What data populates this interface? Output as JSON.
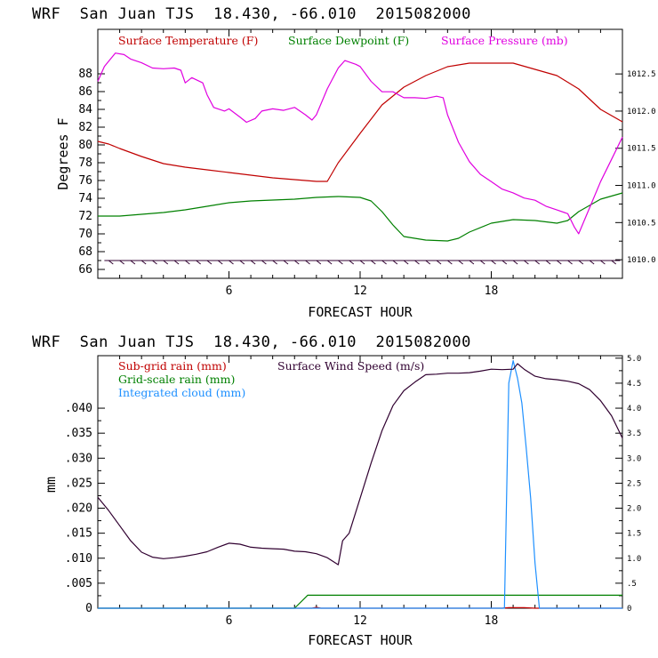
{
  "chart_data": [
    {
      "type": "line",
      "title": "WRF  San Juan TJS  18.430, -66.010  2015082000",
      "xlabel": "FORECAST HOUR",
      "ylabel": "Degrees F",
      "xlim": [
        0,
        24
      ],
      "x_ticks": [
        6,
        12,
        18
      ],
      "ylim": [
        65,
        93
      ],
      "y_ticks": [
        66,
        68,
        70,
        72,
        74,
        76,
        78,
        80,
        82,
        84,
        86,
        88
      ],
      "y2lim": [
        1009.75,
        1013.1
      ],
      "y2_ticks": [
        1010.0,
        1010.5,
        1011.0,
        1011.5,
        1012.0,
        1012.5
      ],
      "y2_tick_labels": [
        "1010.0",
        "1010.5",
        "1011.0",
        "1011.5",
        "1012.0",
        "1012.5"
      ],
      "legend_placement": "top",
      "series": [
        {
          "name": "Surface Temperature (F)",
          "color": "#c00000",
          "axis": "left",
          "x": [
            0,
            0.5,
            1,
            2,
            3,
            4,
            5,
            6,
            7,
            8,
            9,
            10,
            10.5,
            11,
            12,
            13,
            14,
            15,
            16,
            17,
            18,
            19,
            20,
            21,
            22,
            23,
            24
          ],
          "y": [
            80.4,
            80.1,
            79.6,
            78.7,
            77.9,
            77.5,
            77.2,
            76.9,
            76.6,
            76.3,
            76.1,
            75.9,
            75.9,
            78.0,
            81.3,
            84.5,
            86.5,
            87.8,
            88.8,
            89.2,
            89.2,
            89.2,
            88.5,
            87.8,
            86.3,
            84.0,
            82.6
          ]
        },
        {
          "name": "Surface Dewpoint (F)",
          "color": "#008000",
          "axis": "left",
          "x": [
            0,
            1,
            2,
            3,
            4,
            5,
            6,
            7,
            8,
            9,
            10,
            11,
            12,
            12.5,
            13,
            13.5,
            14,
            15,
            16,
            16.5,
            17,
            18,
            19,
            20,
            21,
            21.5,
            22,
            23,
            24
          ],
          "y": [
            72.0,
            72.0,
            72.2,
            72.4,
            72.7,
            73.1,
            73.5,
            73.7,
            73.8,
            73.9,
            74.1,
            74.2,
            74.1,
            73.7,
            72.5,
            71.0,
            69.7,
            69.3,
            69.2,
            69.5,
            70.2,
            71.2,
            71.6,
            71.5,
            71.2,
            71.5,
            72.5,
            73.9,
            74.6
          ]
        },
        {
          "name": "Surface Pressure (mb)",
          "color": "#e000e0",
          "axis": "right",
          "x": [
            0,
            0.3,
            0.8,
            1.2,
            1.5,
            2,
            2.5,
            3,
            3.5,
            3.8,
            4,
            4.3,
            4.8,
            5,
            5.3,
            5.8,
            6,
            6.5,
            6.8,
            7.2,
            7.5,
            8,
            8.5,
            9,
            9.5,
            9.8,
            10,
            10.5,
            11,
            11.3,
            11.8,
            12,
            12.5,
            13,
            13.5,
            14,
            14.5,
            15,
            15.5,
            15.8,
            16,
            16.5,
            17,
            17.5,
            18,
            18.5,
            19,
            19.5,
            20,
            20.5,
            21,
            21.5,
            21.8,
            22,
            22.5,
            23,
            23.5,
            24
          ],
          "y": [
            1012.4,
            1012.6,
            1012.78,
            1012.76,
            1012.7,
            1012.65,
            1012.58,
            1012.57,
            1012.58,
            1012.55,
            1012.38,
            1012.45,
            1012.38,
            1012.22,
            1012.05,
            1012.0,
            1012.03,
            1011.92,
            1011.85,
            1011.9,
            1012.0,
            1012.03,
            1012.01,
            1012.05,
            1011.95,
            1011.88,
            1011.95,
            1012.3,
            1012.58,
            1012.68,
            1012.63,
            1012.6,
            1012.4,
            1012.26,
            1012.26,
            1012.18,
            1012.18,
            1012.17,
            1012.2,
            1012.18,
            1011.95,
            1011.58,
            1011.32,
            1011.15,
            1011.05,
            1010.95,
            1010.9,
            1010.83,
            1010.8,
            1010.72,
            1010.67,
            1010.62,
            1010.44,
            1010.35,
            1010.7,
            1011.05,
            1011.35,
            1011.65
          ]
        }
      ],
      "wind_barbs": {
        "series_color": "#300030",
        "note_axis_level": 67
      }
    },
    {
      "type": "line",
      "title": "WRF  San Juan TJS  18.430, -66.010  2015082000",
      "xlabel": "FORECAST HOUR",
      "ylabel": "mm",
      "xlim": [
        0,
        24
      ],
      "x_ticks": [
        6,
        12,
        18
      ],
      "ylim": [
        0,
        0.0505
      ],
      "y_ticks": [
        0,
        0.005,
        0.01,
        0.015,
        0.02,
        0.025,
        0.03,
        0.035,
        0.04
      ],
      "y_tick_labels": [
        "0",
        ".005",
        ".010",
        ".015",
        ".020",
        ".025",
        ".030",
        ".035",
        ".040"
      ],
      "y2lim": [
        0,
        5.05
      ],
      "y2_ticks": [
        0,
        0.5,
        1.0,
        1.5,
        2.0,
        2.5,
        3.0,
        3.5,
        4.0,
        4.5,
        5.0
      ],
      "y2_tick_labels": [
        "0",
        ".5",
        "1.0",
        "1.5",
        "2.0",
        "2.5",
        "3.0",
        "3.5",
        "4.0",
        "4.5",
        "5.0"
      ],
      "legend_placement": "top-left",
      "series": [
        {
          "name": "Sub-grid rain (mm)",
          "color": "#c00000",
          "axis": "left",
          "x": [
            0,
            9.8,
            10,
            10.2,
            18.5,
            18.8,
            19.5,
            20,
            24
          ],
          "y": [
            0,
            0,
            0.0002,
            0,
            0,
            0.0001,
            0.0001,
            0,
            0
          ]
        },
        {
          "name": "Grid-scale rain (mm)",
          "color": "#008000",
          "axis": "left",
          "x": [
            0,
            9.0,
            9.6,
            24
          ],
          "y": [
            0,
            0,
            0.0026,
            0.0026
          ]
        },
        {
          "name": "Integrated cloud (mm)",
          "color": "#1e90ff",
          "axis": "right",
          "x": [
            0,
            18.6,
            18.8,
            19.0,
            19.2,
            19.4,
            19.6,
            19.8,
            20.0,
            20.2,
            24
          ],
          "y": [
            0,
            0,
            4.5,
            4.95,
            4.6,
            4.1,
            3.2,
            2.2,
            0.9,
            0,
            0
          ]
        },
        {
          "name": "Surface Wind Speed (m/s)",
          "color": "#300030",
          "axis": "left",
          "x": [
            0,
            0.5,
            1,
            1.5,
            2,
            2.5,
            3,
            3.5,
            4,
            4.5,
            5,
            5.5,
            6,
            6.5,
            7,
            7.5,
            8,
            8.5,
            9,
            9.5,
            10,
            10.5,
            11,
            11.2,
            11.5,
            12,
            12.5,
            13,
            13.5,
            14,
            14.5,
            15,
            15.5,
            16,
            16.5,
            17,
            17.5,
            18,
            18.5,
            19,
            19.2,
            19.5,
            20,
            20.5,
            21,
            21.5,
            22,
            22.5,
            23,
            23.5,
            24
          ],
          "y": [
            0.0222,
            0.0195,
            0.0165,
            0.0135,
            0.0112,
            0.0102,
            0.0099,
            0.0101,
            0.0104,
            0.0108,
            0.0113,
            0.0122,
            0.013,
            0.0128,
            0.0122,
            0.012,
            0.0119,
            0.0118,
            0.0114,
            0.0113,
            0.0109,
            0.0101,
            0.0087,
            0.0135,
            0.015,
            0.022,
            0.029,
            0.0355,
            0.0405,
            0.0435,
            0.0452,
            0.0467,
            0.0468,
            0.047,
            0.047,
            0.0471,
            0.0474,
            0.0478,
            0.0477,
            0.0478,
            0.0489,
            0.0478,
            0.0464,
            0.0459,
            0.0457,
            0.0454,
            0.0449,
            0.0437,
            0.0415,
            0.0385,
            0.034
          ]
        }
      ]
    }
  ]
}
